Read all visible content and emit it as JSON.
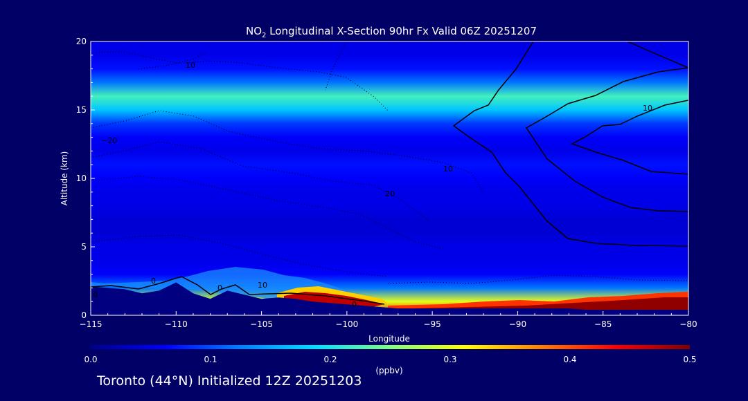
{
  "chart_data": {
    "type": "heatmap",
    "title": {
      "prefix": "NO",
      "subscript": "2",
      "suffix": " Longitudinal X-Section 90hr  Fx Valid 06Z 20251207"
    },
    "xlabel": "Longitude",
    "ylabel": "Altitude (km)",
    "xlim": [
      -115,
      -80
    ],
    "ylim": [
      0,
      20
    ],
    "x_ticks": [
      -115,
      -110,
      -105,
      -100,
      -95,
      -90,
      -85,
      -80
    ],
    "x_tick_labels": [
      "−115",
      "−110",
      "−105",
      "−100",
      "−95",
      "−90",
      "−85",
      "−80"
    ],
    "y_ticks": [
      0,
      5,
      10,
      15,
      20
    ],
    "y_tick_labels": [
      "0",
      "5",
      "10",
      "15",
      "20"
    ],
    "colorbar": {
      "min": 0.0,
      "max": 0.5,
      "ticks": [
        0.0,
        0.1,
        0.2,
        0.3,
        0.4,
        0.5
      ],
      "tick_labels": [
        "0.0",
        "0.1",
        "0.2",
        "0.3",
        "0.4",
        "0.5"
      ],
      "units": "(ppbv)",
      "colors": [
        "#00008b",
        "#0000ff",
        "#0080ff",
        "#00e0ff",
        "#80ff80",
        "#ffff00",
        "#ff8000",
        "#ff0000",
        "#800000"
      ]
    },
    "concentration_profile": {
      "altitude_km": [
        0,
        1,
        2,
        3,
        4,
        5,
        6,
        7,
        8,
        9,
        10,
        11,
        12,
        13,
        14,
        15,
        16,
        17,
        18,
        19,
        20
      ],
      "value_ppbv": [
        0.45,
        0.3,
        0.12,
        0.06,
        0.05,
        0.05,
        0.04,
        0.04,
        0.05,
        0.05,
        0.06,
        0.07,
        0.05,
        0.06,
        0.09,
        0.17,
        0.22,
        0.12,
        0.07,
        0.05,
        0.05
      ]
    },
    "terrain_km": {
      "lon": [
        -115,
        -114,
        -113,
        -112,
        -111,
        -110,
        -109,
        -108,
        -107,
        -106,
        -105,
        -104,
        -103,
        -102,
        -101,
        -100,
        -99,
        -98,
        -97,
        -96,
        -95,
        -94,
        -93,
        -92,
        -91,
        -90,
        -89,
        -88,
        -87,
        -86,
        -85,
        -84,
        -83,
        -82,
        -81,
        -80
      ],
      "alt": [
        2.1,
        2.0,
        1.9,
        1.6,
        1.8,
        2.4,
        1.6,
        1.2,
        1.8,
        1.5,
        1.2,
        1.3,
        1.2,
        1.0,
        0.9,
        0.8,
        0.7,
        0.6,
        0.5,
        0.5,
        0.5,
        0.5,
        0.5,
        0.5,
        0.5,
        0.5,
        0.5,
        0.5,
        0.5,
        0.4,
        0.4,
        0.4,
        0.4,
        0.4,
        0.4,
        0.4
      ]
    },
    "contour_labels": [
      "10",
      "−20",
      "10",
      "10",
      "20",
      "0",
      "0",
      "0",
      "10",
      "−10"
    ]
  },
  "footer_text": "Toronto (44°N) Initialized 12Z 20251203"
}
